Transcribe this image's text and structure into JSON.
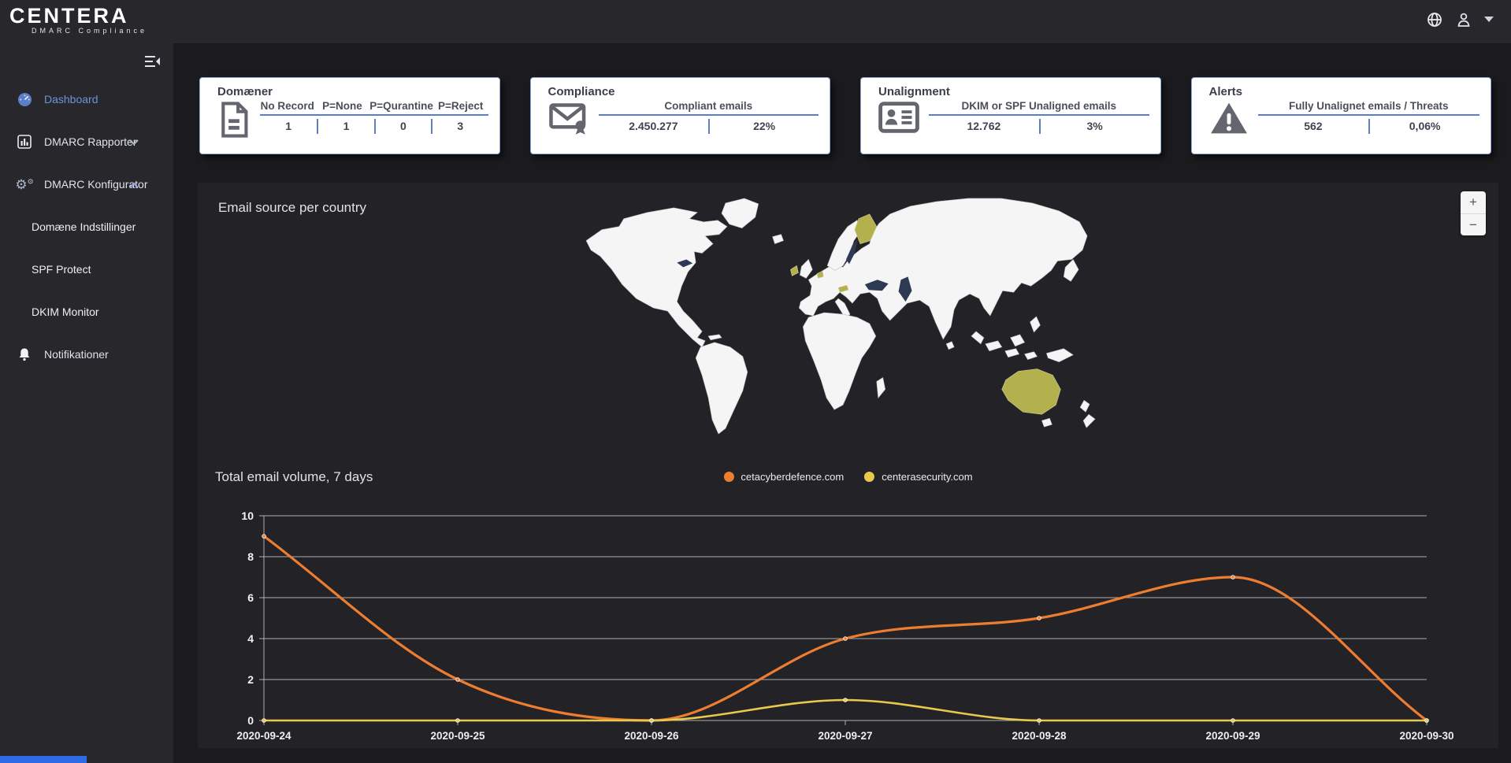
{
  "header": {
    "brand": "CENTERA",
    "brand_subtitle": "DMARC Compliance",
    "icons": [
      "globe-icon",
      "user-icon",
      "caret-down-icon"
    ]
  },
  "sidebar": {
    "items": [
      {
        "label": "Dashboard",
        "icon": "gauge-icon",
        "active": true
      },
      {
        "label": "DMARC Rapporter",
        "icon": "bar-chart-icon",
        "chevron": "down"
      },
      {
        "label": "DMARC Konfigurator",
        "icon": "gears-icon",
        "chevron": "up",
        "expanded": true
      },
      {
        "label": "Domæne Indstillinger",
        "child": true
      },
      {
        "label": "SPF Protect",
        "child": true
      },
      {
        "label": "DKIM Monitor",
        "child": true
      },
      {
        "label": "Notifikationer",
        "icon": "bell-icon"
      }
    ]
  },
  "cards": [
    {
      "title": "Domæner",
      "icon": "document-icon",
      "columns": [
        "No Record",
        "P=None",
        "P=Qurantine",
        "P=Reject"
      ],
      "values": [
        "1",
        "1",
        "0",
        "3"
      ]
    },
    {
      "title": "Compliance",
      "icon": "certified-mail-icon",
      "header": "Compliant emails",
      "values": [
        "2.450.277",
        "22%"
      ]
    },
    {
      "title": "Unalignment",
      "icon": "id-card-icon",
      "header": "DKIM or SPF Unaligned emails",
      "values": [
        "12.762",
        "3%"
      ]
    },
    {
      "title": "Alerts",
      "icon": "warning-icon",
      "header": "Fully Unalignet emails / Threats",
      "values": [
        "562",
        "0,06%"
      ]
    }
  ],
  "map": {
    "title": "Email source per country",
    "zoom_in_label": "+",
    "zoom_out_label": "−",
    "highlighted_countries": [
      "Finland",
      "Ireland",
      "Netherlands",
      "Austria",
      "Australia"
    ],
    "highlight_color": "#b3b14e"
  },
  "chart_data": {
    "type": "line",
    "title": "Total email volume, 7 days",
    "x": [
      "2020-09-24",
      "2020-09-25",
      "2020-09-26",
      "2020-09-27",
      "2020-09-28",
      "2020-09-29",
      "2020-09-30"
    ],
    "series": [
      {
        "name": "cetacyberdefence.com",
        "color": "#ed7d31",
        "values": [
          9,
          2,
          0,
          4,
          5,
          7,
          0
        ]
      },
      {
        "name": "centerasecurity.com",
        "color": "#e8c84d",
        "values": [
          0,
          0,
          0,
          1,
          0,
          0,
          0
        ]
      }
    ],
    "ylim": [
      0,
      10
    ],
    "yticks": [
      0,
      2,
      4,
      6,
      8,
      10
    ],
    "grid": true,
    "legend_position": "top-center",
    "smooth": true
  },
  "colors": {
    "accent_blue": "#5b7fc7",
    "active_link_blue": "#6d93dc",
    "card_border": "#8fa7d9",
    "series_orange": "#ed7d31",
    "series_yellow": "#e8c84d",
    "map_highlight": "#b3b14e"
  }
}
